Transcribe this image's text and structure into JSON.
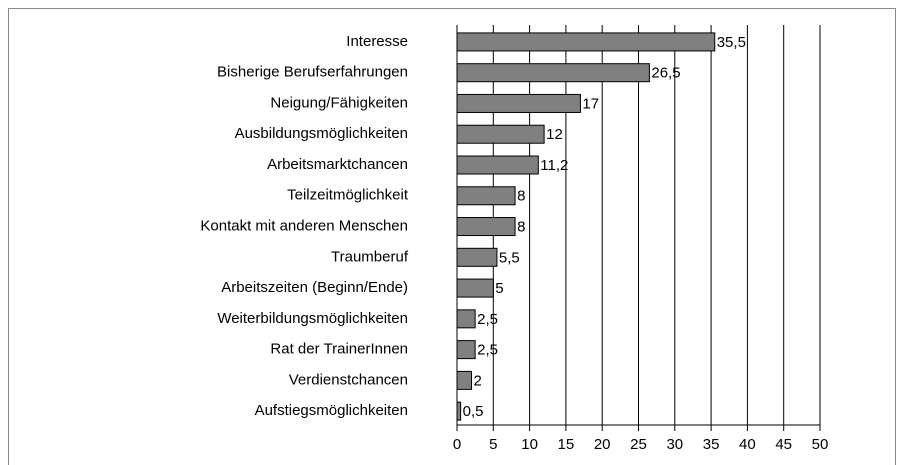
{
  "chart_data": {
    "type": "bar",
    "orientation": "horizontal",
    "categories": [
      "Interesse",
      "Bisherige Berufserfahrungen",
      "Neigung/Fähigkeiten",
      "Ausbildungsmöglichkeiten",
      "Arbeitsmarktchancen",
      "Teilzeitmöglichkeit",
      "Kontakt mit anderen Menschen",
      "Traumberuf",
      "Arbeitszeiten (Beginn/Ende)",
      "Weiterbildungsmöglichkeiten",
      "Rat der TrainerInnen",
      "Verdienstchancen",
      "Aufstiegsmöglichkeiten"
    ],
    "values": [
      35.5,
      26.5,
      17,
      12,
      11.2,
      8,
      8,
      5.5,
      5,
      2.5,
      2.5,
      2,
      0.5
    ],
    "value_labels": [
      "35,5",
      "26,5",
      "17",
      "12",
      "11,2",
      "8",
      "8",
      "5,5",
      "5",
      "2,5",
      "2,5",
      "2",
      "0,5"
    ],
    "color": "#808080",
    "xlim": [
      0,
      50
    ],
    "xticks": [
      0,
      5,
      10,
      15,
      20,
      25,
      30,
      35,
      40,
      45,
      50
    ],
    "grid": true
  }
}
